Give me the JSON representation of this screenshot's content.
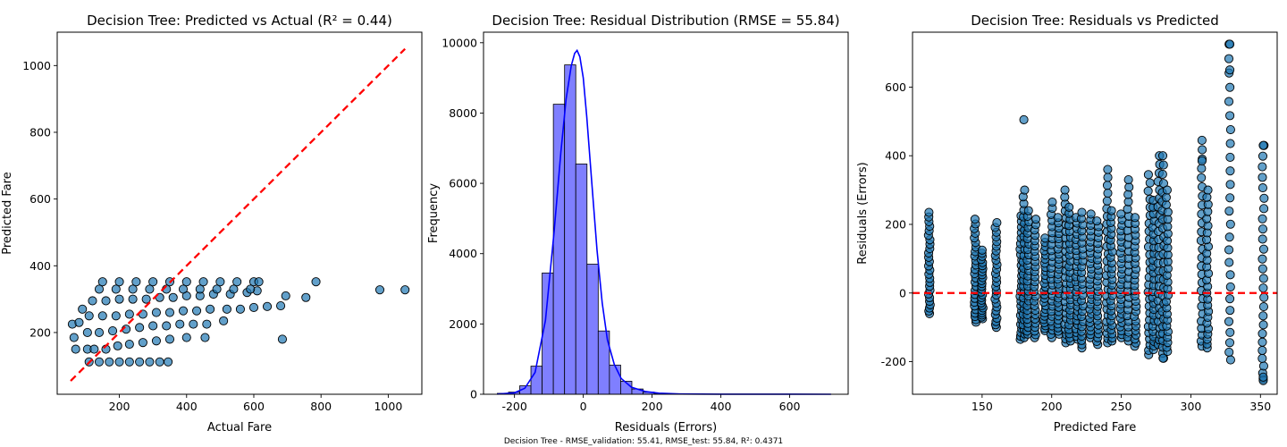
{
  "figure": {
    "footer": "Decision Tree - RMSE_validation: 55.41, RMSE_test: 55.84, R²: 0.4371"
  },
  "colors": {
    "point_fill": "#1f77b4",
    "point_edge": "#000000",
    "reference_line": "#ff0000",
    "hist_fill": "#7f7fff",
    "kde_line": "#0000ff"
  },
  "chart_data": [
    {
      "id": "pred_vs_actual",
      "type": "scatter",
      "title": "Decision Tree: Predicted vs Actual (R² = 0.44)",
      "xlabel": "Actual Fare",
      "ylabel": "Predicted Fare",
      "xlim": [
        15,
        1100
      ],
      "ylim": [
        15,
        1100
      ],
      "xticks": [
        200,
        400,
        600,
        800,
        1000
      ],
      "yticks": [
        200,
        400,
        600,
        800,
        1000
      ],
      "reference_line": {
        "style": "dashed",
        "color": "#ff0000",
        "x": [
          55,
          1050
        ],
        "y": [
          55,
          1050
        ]
      },
      "points": [
        [
          110,
          112
        ],
        [
          140,
          112
        ],
        [
          170,
          112
        ],
        [
          200,
          112
        ],
        [
          230,
          112
        ],
        [
          260,
          112
        ],
        [
          290,
          112
        ],
        [
          320,
          112
        ],
        [
          345,
          112
        ],
        [
          105,
          150
        ],
        [
          125,
          150
        ],
        [
          160,
          150
        ],
        [
          195,
          160
        ],
        [
          230,
          165
        ],
        [
          270,
          170
        ],
        [
          310,
          175
        ],
        [
          350,
          180
        ],
        [
          400,
          185
        ],
        [
          455,
          185
        ],
        [
          685,
          180
        ],
        [
          105,
          200
        ],
        [
          140,
          200
        ],
        [
          180,
          205
        ],
        [
          220,
          210
        ],
        [
          260,
          215
        ],
        [
          300,
          220
        ],
        [
          340,
          220
        ],
        [
          380,
          225
        ],
        [
          420,
          225
        ],
        [
          460,
          225
        ],
        [
          510,
          235
        ],
        [
          110,
          250
        ],
        [
          150,
          250
        ],
        [
          190,
          250
        ],
        [
          230,
          255
        ],
        [
          270,
          255
        ],
        [
          310,
          260
        ],
        [
          350,
          260
        ],
        [
          390,
          265
        ],
        [
          430,
          265
        ],
        [
          470,
          270
        ],
        [
          520,
          270
        ],
        [
          560,
          270
        ],
        [
          600,
          275
        ],
        [
          640,
          278
        ],
        [
          680,
          280
        ],
        [
          120,
          295
        ],
        [
          160,
          295
        ],
        [
          200,
          300
        ],
        [
          240,
          300
        ],
        [
          280,
          300
        ],
        [
          320,
          305
        ],
        [
          360,
          305
        ],
        [
          400,
          310
        ],
        [
          440,
          310
        ],
        [
          480,
          315
        ],
        [
          530,
          315
        ],
        [
          580,
          320
        ],
        [
          610,
          325
        ],
        [
          695,
          310
        ],
        [
          755,
          305
        ],
        [
          140,
          330
        ],
        [
          190,
          330
        ],
        [
          240,
          330
        ],
        [
          290,
          330
        ],
        [
          340,
          330
        ],
        [
          390,
          330
        ],
        [
          440,
          330
        ],
        [
          490,
          330
        ],
        [
          540,
          330
        ],
        [
          590,
          330
        ],
        [
          975,
          328
        ],
        [
          1050,
          328
        ],
        [
          150,
          352
        ],
        [
          200,
          352
        ],
        [
          250,
          352
        ],
        [
          300,
          352
        ],
        [
          350,
          352
        ],
        [
          400,
          352
        ],
        [
          450,
          352
        ],
        [
          500,
          352
        ],
        [
          550,
          352
        ],
        [
          600,
          352
        ],
        [
          615,
          352
        ],
        [
          785,
          352
        ],
        [
          60,
          225
        ],
        [
          65,
          185
        ],
        [
          70,
          150
        ],
        [
          80,
          230
        ],
        [
          90,
          270
        ]
      ]
    },
    {
      "id": "residual_hist",
      "type": "bar",
      "title": "Decision Tree: Residual Distribution (RMSE = 55.84)",
      "xlabel": "Residuals (Errors)",
      "ylabel": "Frequency",
      "xlim": [
        -290,
        770
      ],
      "ylim": [
        0,
        10300
      ],
      "xticks": [
        -200,
        0,
        200,
        400,
        600
      ],
      "yticks": [
        0,
        2000,
        4000,
        6000,
        8000,
        10000
      ],
      "bin_width": 32.6,
      "bins": [
        [
          -250.0,
          25
        ],
        [
          -217.4,
          60
        ],
        [
          -184.8,
          240
        ],
        [
          -152.2,
          800
        ],
        [
          -119.6,
          3450
        ],
        [
          -87.0,
          8250
        ],
        [
          -54.4,
          9370
        ],
        [
          -21.8,
          6550
        ],
        [
          10.8,
          3700
        ],
        [
          43.4,
          1800
        ],
        [
          76.0,
          830
        ],
        [
          108.6,
          370
        ],
        [
          141.2,
          150
        ],
        [
          173.8,
          60
        ],
        [
          206.4,
          25
        ],
        [
          239.0,
          8
        ],
        [
          271.6,
          4
        ],
        [
          304.2,
          2
        ],
        [
          336.8,
          1
        ],
        [
          369.4,
          1
        ]
      ],
      "kde": [
        [
          -250,
          5
        ],
        [
          -200,
          40
        ],
        [
          -170,
          170
        ],
        [
          -140,
          620
        ],
        [
          -110,
          2100
        ],
        [
          -85,
          4600
        ],
        [
          -65,
          6900
        ],
        [
          -50,
          8400
        ],
        [
          -35,
          9350
        ],
        [
          -25,
          9700
        ],
        [
          -18,
          9780
        ],
        [
          -10,
          9600
        ],
        [
          0,
          9000
        ],
        [
          10,
          7900
        ],
        [
          25,
          6000
        ],
        [
          40,
          4100
        ],
        [
          55,
          2600
        ],
        [
          70,
          1550
        ],
        [
          90,
          850
        ],
        [
          110,
          450
        ],
        [
          140,
          200
        ],
        [
          180,
          80
        ],
        [
          220,
          30
        ],
        [
          280,
          8
        ],
        [
          400,
          2
        ],
        [
          720,
          0
        ]
      ]
    },
    {
      "id": "resid_vs_pred",
      "type": "scatter",
      "title": "Decision Tree: Residuals vs Predicted",
      "xlabel": "Predicted Fare",
      "ylabel": "Residuals (Errors)",
      "xlim": [
        100,
        362
      ],
      "ylim": [
        -295,
        760
      ],
      "xticks": [
        150,
        200,
        250,
        300,
        350
      ],
      "yticks": [
        -200,
        0,
        200,
        400,
        600
      ],
      "reference_line": {
        "style": "dashed",
        "color": "#ff0000",
        "y": 0
      },
      "columns": [
        [
          112,
          -60,
          235
        ],
        [
          145,
          -85,
          215
        ],
        [
          150,
          -75,
          125
        ],
        [
          160,
          -100,
          205
        ],
        [
          178,
          -135,
          225
        ],
        [
          180,
          -130,
          300
        ],
        [
          183,
          -120,
          240
        ],
        [
          188,
          -130,
          215
        ],
        [
          195,
          -110,
          160
        ],
        [
          200,
          -130,
          265
        ],
        [
          205,
          -120,
          220
        ],
        [
          210,
          -145,
          300
        ],
        [
          213,
          -140,
          250
        ],
        [
          218,
          -135,
          220
        ],
        [
          222,
          -160,
          235
        ],
        [
          228,
          -130,
          230
        ],
        [
          233,
          -150,
          210
        ],
        [
          240,
          -145,
          360
        ],
        [
          243,
          -140,
          240
        ],
        [
          250,
          -130,
          230
        ],
        [
          255,
          -140,
          330
        ],
        [
          260,
          -155,
          220
        ],
        [
          270,
          -180,
          345
        ],
        [
          273,
          -165,
          270
        ],
        [
          277,
          -150,
          400
        ],
        [
          280,
          -190,
          400
        ],
        [
          283,
          -170,
          300
        ],
        [
          308,
          -155,
          445
        ],
        [
          312,
          -160,
          300
        ],
        [
          328,
          -195,
          725
        ],
        [
          352,
          -250,
          430
        ]
      ],
      "outliers": [
        [
          180,
          505
        ],
        [
          328,
          650
        ],
        [
          328,
          725
        ],
        [
          308,
          385
        ],
        [
          352,
          430
        ],
        [
          352,
          -255
        ],
        [
          352,
          -245
        ],
        [
          280,
          -190
        ]
      ]
    }
  ]
}
